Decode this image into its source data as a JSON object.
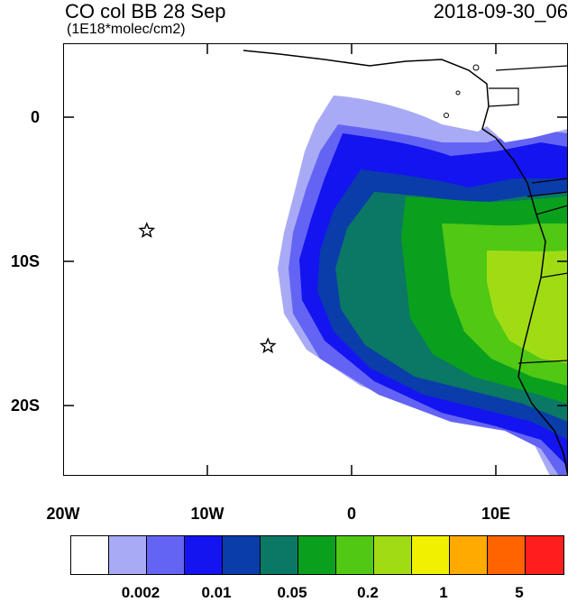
{
  "title": {
    "left": "CO col BB 28 Sep",
    "right": "2018-09-30_06",
    "units": "(1E18*molec/cm2)"
  },
  "axes": {
    "y_ticks": [
      "0",
      "10S",
      "20S"
    ],
    "x_ticks": [
      "20W",
      "10W",
      "0",
      "10E"
    ],
    "lon_range": [
      -20,
      15
    ],
    "lat_range": [
      -25,
      5
    ]
  },
  "markers": [
    {
      "name": "star-marker-1",
      "lon": -14.2,
      "lat": -8.0
    },
    {
      "name": "star-marker-2",
      "lon": -5.8,
      "lat": -16.0
    }
  ],
  "colorbar": {
    "colors": [
      "#ffffff",
      "#a8aaf6",
      "#6464f4",
      "#1414f0",
      "#0a3caa",
      "#0a7864",
      "#0aa01e",
      "#50c814",
      "#a0dc14",
      "#f0f000",
      "#ffaa00",
      "#ff6400",
      "#ff1e1e"
    ],
    "labels": [
      "0.002",
      "0.01",
      "0.05",
      "0.2",
      "1",
      "5"
    ]
  }
}
